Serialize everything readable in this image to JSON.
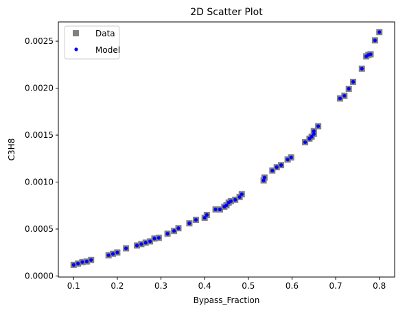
{
  "chart_data": {
    "type": "scatter",
    "title": "2D Scatter Plot",
    "xlabel": "Bypass_Fraction",
    "ylabel": "C3H8",
    "xlim": [
      0.065,
      0.835
    ],
    "ylim": [
      -1.1e-05,
      0.002705
    ],
    "x_ticks": [
      0.1,
      0.2,
      0.3,
      0.4,
      0.5,
      0.6,
      0.7,
      0.8
    ],
    "x_tick_labels": [
      "0.1",
      "0.2",
      "0.3",
      "0.4",
      "0.5",
      "0.6",
      "0.7",
      "0.8"
    ],
    "y_ticks": [
      0.0,
      0.0005,
      0.001,
      0.0015,
      0.002,
      0.0025
    ],
    "y_tick_labels": [
      "0.0000",
      "0.0005",
      "0.0010",
      "0.0015",
      "0.0020",
      "0.0025"
    ],
    "grid": false,
    "legend_position": "top-left",
    "series": [
      {
        "name": "Data",
        "marker": "square",
        "color": "#808080",
        "points": [
          [
            0.1,
            0.000118
          ],
          [
            0.11,
            0.000133
          ],
          [
            0.12,
            0.000148
          ],
          [
            0.13,
            0.000155
          ],
          [
            0.14,
            0.00017
          ],
          [
            0.18,
            0.000221
          ],
          [
            0.19,
            0.000236
          ],
          [
            0.2,
            0.000251
          ],
          [
            0.22,
            0.000295
          ],
          [
            0.245,
            0.000325
          ],
          [
            0.255,
            0.00034
          ],
          [
            0.265,
            0.000355
          ],
          [
            0.275,
            0.000369
          ],
          [
            0.285,
            0.000399
          ],
          [
            0.295,
            0.000406
          ],
          [
            0.315,
            0.00045
          ],
          [
            0.33,
            0.00048
          ],
          [
            0.34,
            0.000509
          ],
          [
            0.365,
            0.000561
          ],
          [
            0.38,
            0.000598
          ],
          [
            0.4,
            0.00062
          ],
          [
            0.405,
            0.00065
          ],
          [
            0.425,
            0.000709
          ],
          [
            0.435,
            0.000709
          ],
          [
            0.445,
            0.000738
          ],
          [
            0.45,
            0.000753
          ],
          [
            0.455,
            0.000782
          ],
          [
            0.46,
            0.000797
          ],
          [
            0.47,
            0.000812
          ],
          [
            0.48,
            0.000841
          ],
          [
            0.485,
            0.000871
          ],
          [
            0.535,
            0.001018
          ],
          [
            0.537,
            0.001048
          ],
          [
            0.555,
            0.001122
          ],
          [
            0.565,
            0.001159
          ],
          [
            0.575,
            0.001181
          ],
          [
            0.59,
            0.00124
          ],
          [
            0.598,
            0.001262
          ],
          [
            0.63,
            0.001425
          ],
          [
            0.64,
            0.001462
          ],
          [
            0.645,
            0.001484
          ],
          [
            0.65,
            0.001513
          ],
          [
            0.65,
            0.001543
          ],
          [
            0.66,
            0.001595
          ],
          [
            0.71,
            0.00189
          ],
          [
            0.72,
            0.001919
          ],
          [
            0.73,
            0.001993
          ],
          [
            0.74,
            0.002067
          ],
          [
            0.76,
            0.002207
          ],
          [
            0.77,
            0.002339
          ],
          [
            0.775,
            0.002354
          ],
          [
            0.78,
            0.002361
          ],
          [
            0.79,
            0.002509
          ],
          [
            0.8,
            0.002597
          ]
        ]
      },
      {
        "name": "Model",
        "marker": "circle",
        "color": "#0000ff",
        "points": [
          [
            0.1,
            0.000118
          ],
          [
            0.11,
            0.000133
          ],
          [
            0.12,
            0.000148
          ],
          [
            0.13,
            0.000155
          ],
          [
            0.14,
            0.00017
          ],
          [
            0.18,
            0.000221
          ],
          [
            0.19,
            0.000236
          ],
          [
            0.2,
            0.000251
          ],
          [
            0.22,
            0.000295
          ],
          [
            0.245,
            0.000325
          ],
          [
            0.255,
            0.00034
          ],
          [
            0.265,
            0.000355
          ],
          [
            0.275,
            0.000369
          ],
          [
            0.285,
            0.000399
          ],
          [
            0.295,
            0.000406
          ],
          [
            0.315,
            0.00045
          ],
          [
            0.33,
            0.00048
          ],
          [
            0.34,
            0.000509
          ],
          [
            0.365,
            0.000561
          ],
          [
            0.38,
            0.000598
          ],
          [
            0.4,
            0.00062
          ],
          [
            0.405,
            0.00065
          ],
          [
            0.425,
            0.000709
          ],
          [
            0.435,
            0.000709
          ],
          [
            0.445,
            0.000738
          ],
          [
            0.45,
            0.000753
          ],
          [
            0.455,
            0.000782
          ],
          [
            0.46,
            0.000797
          ],
          [
            0.47,
            0.000812
          ],
          [
            0.48,
            0.000841
          ],
          [
            0.485,
            0.000871
          ],
          [
            0.535,
            0.001018
          ],
          [
            0.537,
            0.001048
          ],
          [
            0.555,
            0.001122
          ],
          [
            0.565,
            0.001159
          ],
          [
            0.575,
            0.001181
          ],
          [
            0.59,
            0.00124
          ],
          [
            0.598,
            0.001262
          ],
          [
            0.63,
            0.001425
          ],
          [
            0.64,
            0.001462
          ],
          [
            0.645,
            0.001484
          ],
          [
            0.65,
            0.001513
          ],
          [
            0.65,
            0.001543
          ],
          [
            0.66,
            0.001595
          ],
          [
            0.71,
            0.00189
          ],
          [
            0.72,
            0.001919
          ],
          [
            0.73,
            0.001993
          ],
          [
            0.74,
            0.002067
          ],
          [
            0.76,
            0.002207
          ],
          [
            0.77,
            0.002339
          ],
          [
            0.775,
            0.002354
          ],
          [
            0.78,
            0.002361
          ],
          [
            0.79,
            0.002509
          ],
          [
            0.8,
            0.002597
          ]
        ]
      }
    ]
  }
}
